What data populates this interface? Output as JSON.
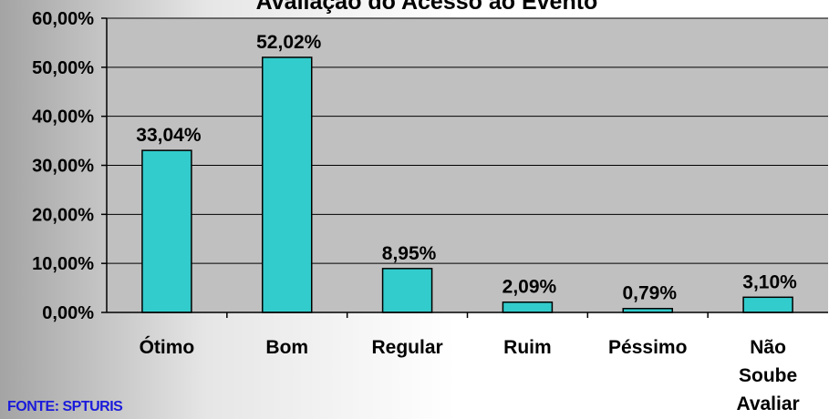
{
  "chart_data": {
    "type": "bar",
    "title": "Avaliação do Acesso ao Evento",
    "categories": [
      "Ótimo",
      "Bom",
      "Regular",
      "Ruim",
      "Péssimo",
      "Não Soube Avaliar"
    ],
    "values": [
      33.04,
      52.02,
      8.95,
      2.09,
      0.79,
      3.1
    ],
    "value_labels": [
      "33,04%",
      "52,02%",
      "8,95%",
      "2,09%",
      "0,79%",
      "3,10%"
    ],
    "yticks": [
      "0,00%",
      "10,00%",
      "20,00%",
      "30,00%",
      "40,00%",
      "50,00%",
      "60,00%"
    ],
    "ylim": [
      0,
      60
    ],
    "xlabel": "",
    "ylabel": "",
    "grid": true,
    "legend": "none",
    "bar_color": "#33cccc",
    "plot_background": "#c0c0c0"
  },
  "source_note": "FONTE: SPTURIS",
  "colors": {
    "bar": "#33cccc",
    "bar_border": "#000000",
    "source_text": "#1a1adb"
  }
}
